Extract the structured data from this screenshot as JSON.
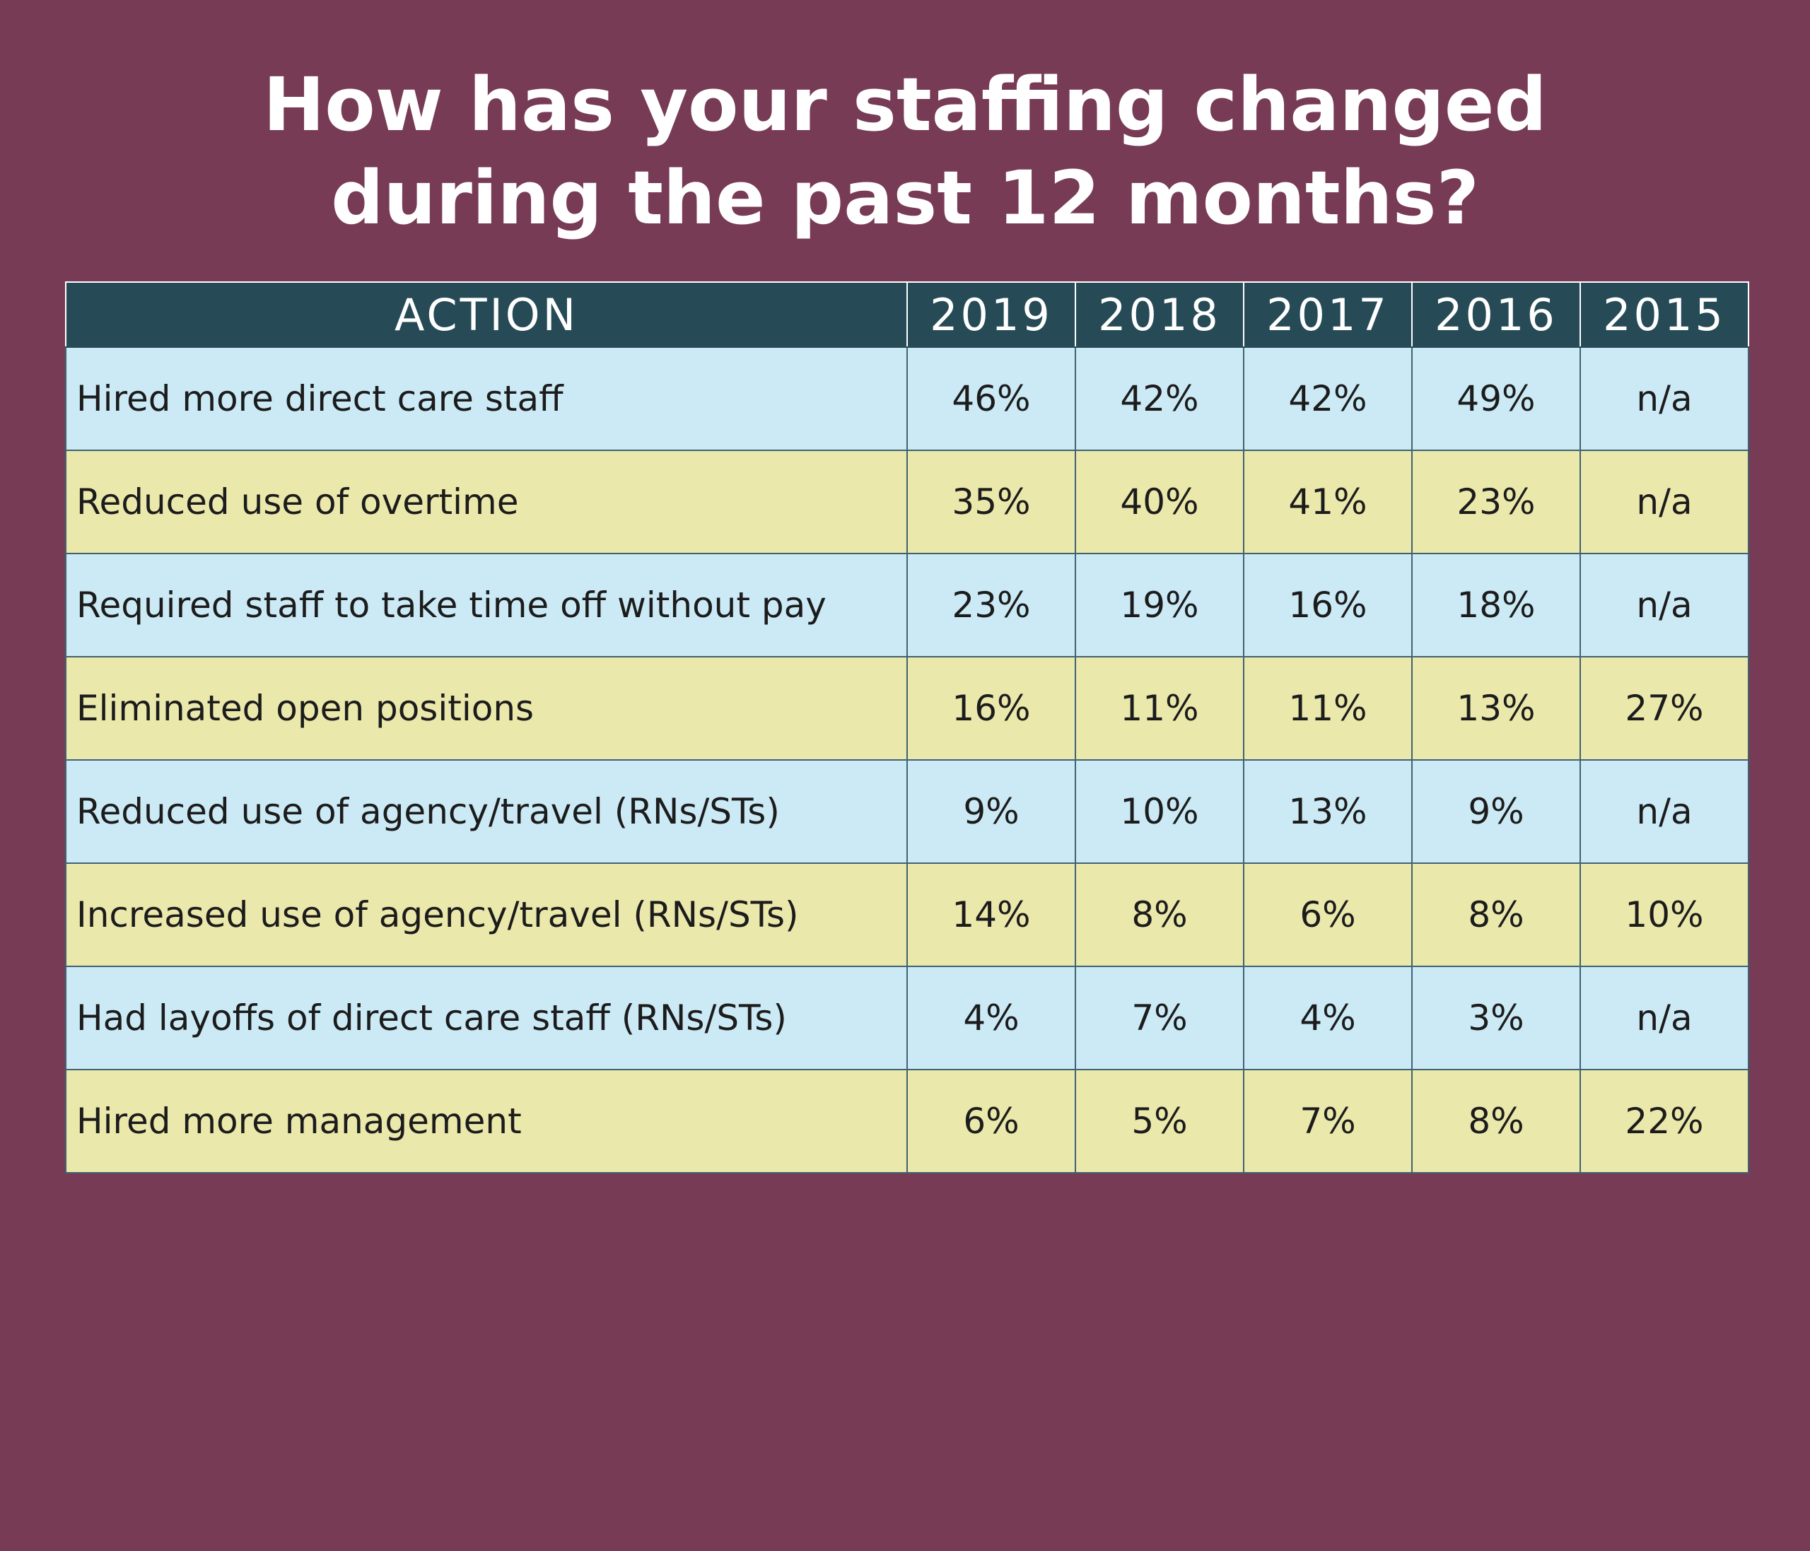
{
  "title": {
    "line1": "How has your staffing changed",
    "line2": "during the past 12 months?"
  },
  "colors": {
    "background": "#783b55",
    "header": "#264b57",
    "row_blue": "#cbeaf6",
    "row_yellow": "#ebe8ab"
  },
  "chart_data": {
    "type": "table",
    "title": "How has your staffing changed during the past 12 months?",
    "columns": [
      "ACTION",
      "2019",
      "2018",
      "2017",
      "2016",
      "2015"
    ],
    "rows": [
      {
        "action": "Hired more direct care staff",
        "values": [
          "46%",
          "42%",
          "42%",
          "49%",
          "n/a"
        ]
      },
      {
        "action": "Reduced use of overtime",
        "values": [
          "35%",
          "40%",
          "41%",
          "23%",
          "n/a"
        ]
      },
      {
        "action": "Required staff to take time off without pay",
        "values": [
          "23%",
          "19%",
          "16%",
          "18%",
          "n/a"
        ]
      },
      {
        "action": "Eliminated open positions",
        "values": [
          "16%",
          "11%",
          "11%",
          "13%",
          "27%"
        ]
      },
      {
        "action": "Reduced use of agency/travel (RNs/STs)",
        "values": [
          "9%",
          "10%",
          "13%",
          "9%",
          "n/a"
        ]
      },
      {
        "action": "Increased use of agency/travel (RNs/STs)",
        "values": [
          "14%",
          "8%",
          "6%",
          "8%",
          "10%"
        ]
      },
      {
        "action": "Had layoffs of direct care staff (RNs/STs)",
        "values": [
          "4%",
          "7%",
          "4%",
          "3%",
          "n/a"
        ]
      },
      {
        "action": "Hired more management",
        "values": [
          "6%",
          "5%",
          "7%",
          "8%",
          "22%"
        ]
      }
    ]
  }
}
